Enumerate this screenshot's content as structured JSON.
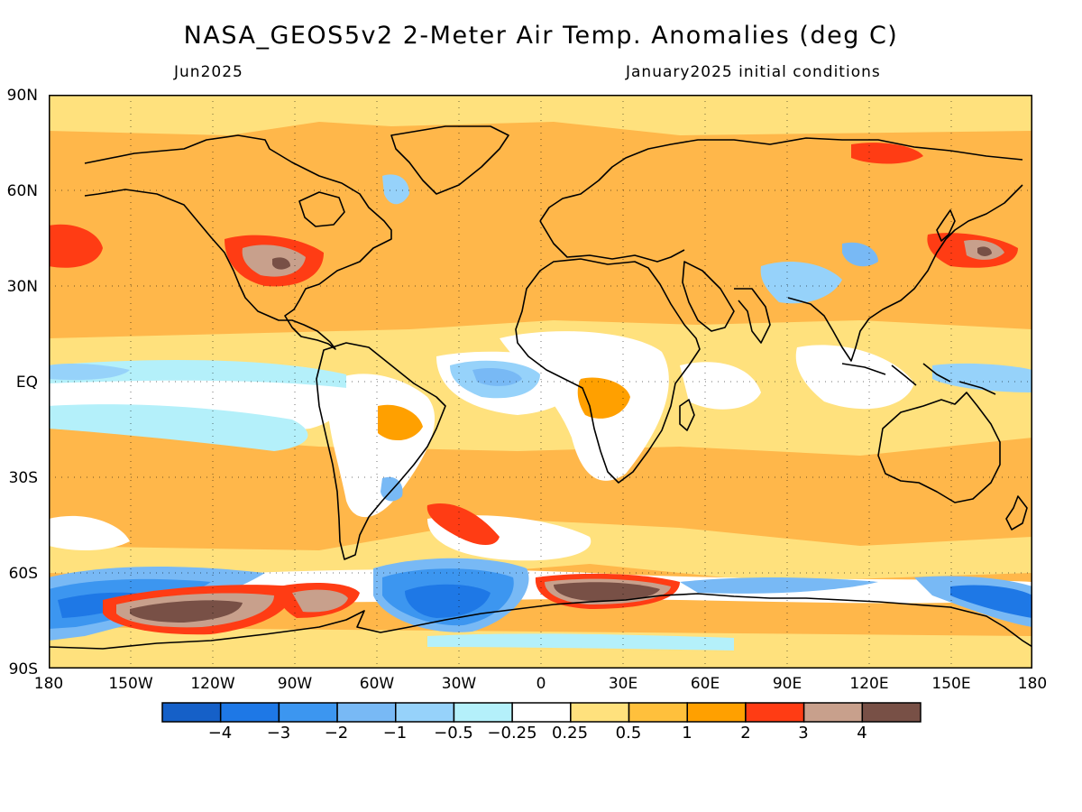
{
  "title": "NASA_GEOS5v2 2-Meter Air Temp. Anomalies (deg C)",
  "subtitle_left": "Jun2025",
  "subtitle_right": "January2025 initial conditions",
  "latitude_labels": [
    "90N",
    "60N",
    "30N",
    "EQ",
    "30S",
    "60S",
    "90S"
  ],
  "longitude_labels": [
    "180",
    "150W",
    "120W",
    "90W",
    "60W",
    "30W",
    "0",
    "30E",
    "60E",
    "90E",
    "120E",
    "150E",
    "180"
  ],
  "colorbar": {
    "labels": [
      "−4",
      "−3",
      "−2",
      "−1",
      "−0.5",
      "−0.25",
      "0.25",
      "0.5",
      "1",
      "2",
      "3",
      "4"
    ],
    "colors": [
      "#1560c8",
      "#1e78e6",
      "#3c96f0",
      "#78b9f5",
      "#96d2fa",
      "#b4f0fa",
      "#ffffff",
      "#ffe17d",
      "#ffc03c",
      "#ffa000",
      "#ff3c14",
      "#c8a08c",
      "#785046"
    ]
  },
  "map": {
    "background_color": "#ffb74a",
    "grid": true
  }
}
